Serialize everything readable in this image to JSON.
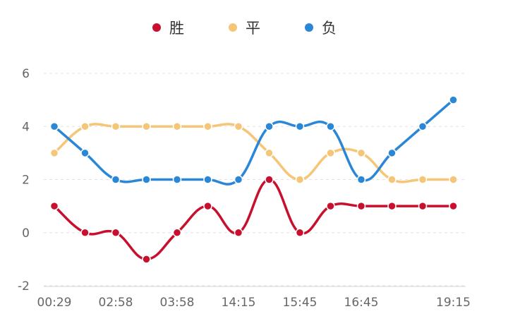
{
  "chart_data": {
    "type": "line",
    "categories": [
      "00:29",
      "",
      "02:58",
      "",
      "03:58",
      "",
      "14:15",
      "",
      "15:45",
      "",
      "16:45",
      "",
      "",
      "19:15"
    ],
    "series": [
      {
        "name": "胜",
        "color": "#c8102e",
        "values": [
          1,
          0,
          0,
          -1,
          0,
          1,
          0,
          2,
          0,
          1,
          1,
          1,
          1,
          1
        ]
      },
      {
        "name": "平",
        "color": "#f5c578",
        "values": [
          3,
          4,
          4,
          4,
          4,
          4,
          4,
          3,
          2,
          3,
          3,
          2,
          2,
          2
        ]
      },
      {
        "name": "负",
        "color": "#2a87d8",
        "values": [
          4,
          3,
          2,
          2,
          2,
          2,
          2,
          4,
          4,
          4,
          2,
          3,
          4,
          5
        ]
      }
    ],
    "yticks": [
      -2,
      0,
      2,
      4,
      6
    ],
    "ylim": [
      -2,
      6
    ],
    "grid": true,
    "legend_position": "top-center",
    "title": "",
    "xlabel": "",
    "ylabel": ""
  }
}
